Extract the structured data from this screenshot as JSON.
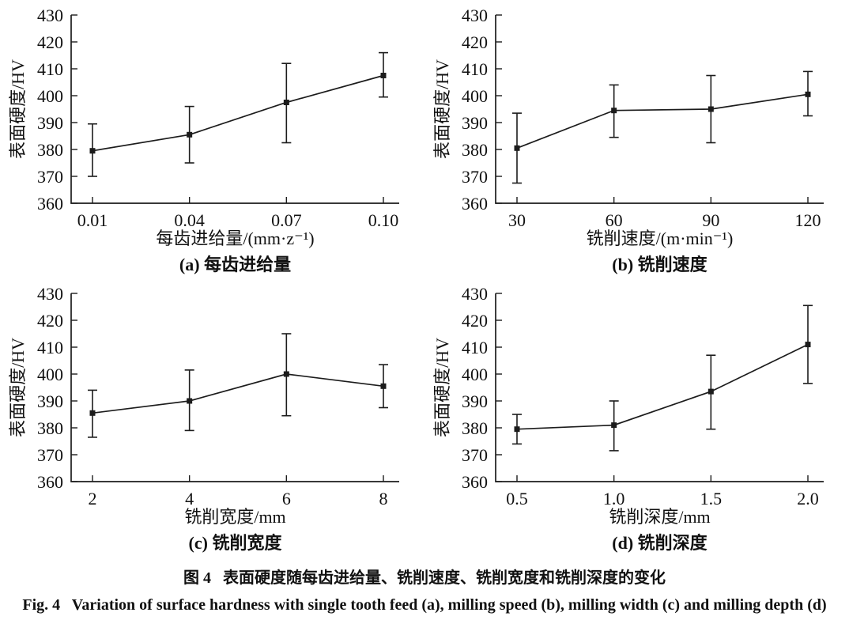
{
  "figure": {
    "caption_zh": "图 4   表面硬度随每齿进给量、铣削速度、铣削宽度和铣削深度的变化",
    "caption_en": "Fig. 4   Variation of surface hardness with single tooth feed (a), milling speed (b), milling width (c) and milling depth (d)"
  },
  "style": {
    "line_color": "#1c1c1c",
    "text_color": "#111111",
    "background": "#ffffff"
  },
  "chart_data": [
    {
      "panel": "a",
      "type": "line",
      "title": "(a) 每齿进给量",
      "xlabel": "每齿进给量/(mm·z⁻¹)",
      "ylabel": "表面硬度/HV",
      "categories": [
        "0.01",
        "0.04",
        "0.07",
        "0.10"
      ],
      "values": [
        379.5,
        385.5,
        397.5,
        407.5
      ],
      "err_up": [
        10,
        10.5,
        14.5,
        8.5
      ],
      "err_down": [
        9.5,
        10.5,
        15,
        8
      ],
      "ylim": [
        360,
        430
      ],
      "yticks": [
        360,
        370,
        380,
        390,
        400,
        410,
        420,
        430
      ],
      "grid": false,
      "legend": null,
      "marker": "square"
    },
    {
      "panel": "b",
      "type": "line",
      "title": "(b) 铣削速度",
      "xlabel": "铣削速度/(m·min⁻¹)",
      "ylabel": "表面硬度/HV",
      "categories": [
        "30",
        "60",
        "90",
        "120"
      ],
      "values": [
        380.5,
        394.5,
        395,
        400.5
      ],
      "err_up": [
        13,
        9.5,
        12.5,
        8.5
      ],
      "err_down": [
        13,
        10,
        12.5,
        8
      ],
      "ylim": [
        360,
        430
      ],
      "yticks": [
        360,
        370,
        380,
        390,
        400,
        410,
        420,
        430
      ],
      "grid": false,
      "legend": null,
      "marker": "square"
    },
    {
      "panel": "c",
      "type": "line",
      "title": "(c) 铣削宽度",
      "xlabel": "铣削宽度/mm",
      "ylabel": "表面硬度/HV",
      "categories": [
        "2",
        "4",
        "6",
        "8"
      ],
      "values": [
        385.5,
        390,
        400,
        395.5
      ],
      "err_up": [
        8.5,
        11.5,
        15,
        8
      ],
      "err_down": [
        9,
        11,
        15.5,
        8
      ],
      "ylim": [
        360,
        430
      ],
      "yticks": [
        360,
        370,
        380,
        390,
        400,
        410,
        420,
        430
      ],
      "grid": false,
      "legend": null,
      "marker": "square"
    },
    {
      "panel": "d",
      "type": "line",
      "title": "(d) 铣削深度",
      "xlabel": "铣削深度/mm",
      "ylabel": "表面硬度/HV",
      "categories": [
        "0.5",
        "1.0",
        "1.5",
        "2.0"
      ],
      "values": [
        379.5,
        381,
        393.5,
        411
      ],
      "err_up": [
        5.5,
        9,
        13.5,
        14.5
      ],
      "err_down": [
        5.5,
        9.5,
        14,
        14.5
      ],
      "ylim": [
        360,
        430
      ],
      "yticks": [
        360,
        370,
        380,
        390,
        400,
        410,
        420,
        430
      ],
      "grid": false,
      "legend": null,
      "marker": "square"
    }
  ]
}
